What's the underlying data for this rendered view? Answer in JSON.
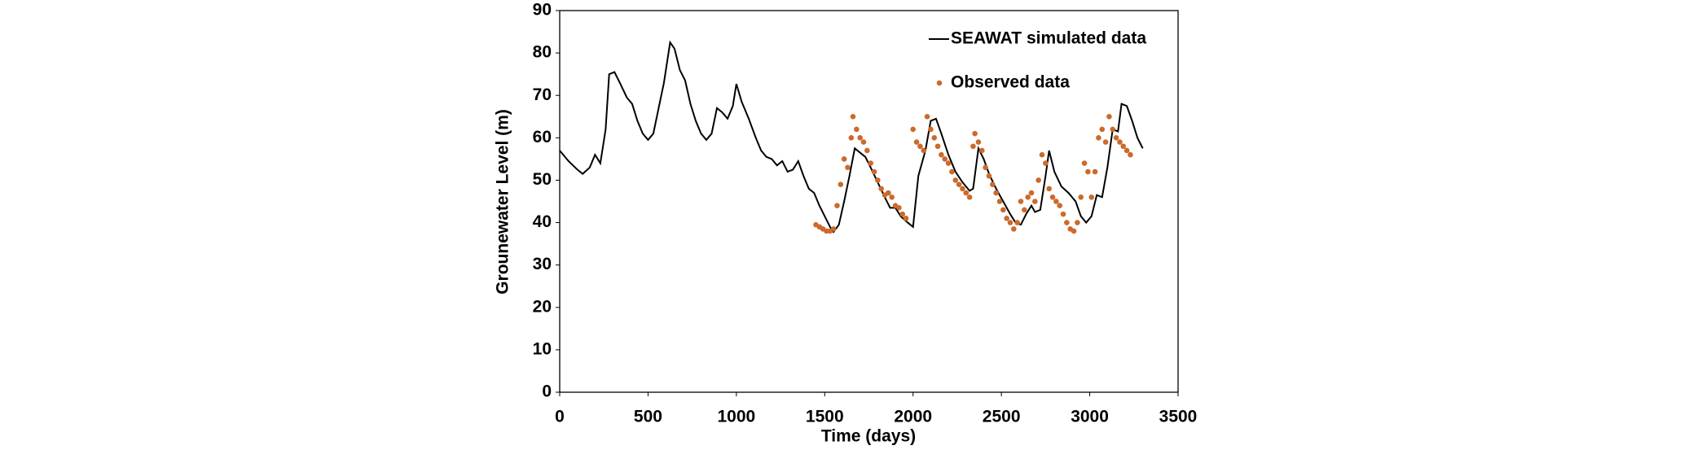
{
  "chart_data": {
    "type": "line",
    "x_label": "Time (days)",
    "y_label": "Grounewater Level (m)",
    "xlim": [
      0,
      3500
    ],
    "xticks": [
      0,
      500,
      1000,
      1500,
      2000,
      2500,
      3000,
      3500
    ],
    "ylim": [
      0,
      90
    ],
    "yticks": [
      0,
      10,
      20,
      30,
      40,
      50,
      60,
      70,
      80,
      90
    ],
    "grid": false,
    "legend": "upper right",
    "series": [
      {
        "name": "SEAWAT simulated data",
        "type": "line",
        "color": "#000000",
        "x": [
          0,
          50,
          100,
          130,
          170,
          200,
          230,
          260,
          280,
          310,
          340,
          380,
          410,
          440,
          470,
          500,
          530,
          560,
          590,
          625,
          650,
          680,
          710,
          740,
          770,
          800,
          830,
          860,
          890,
          920,
          950,
          980,
          1000,
          1030,
          1070,
          1110,
          1140,
          1170,
          1200,
          1230,
          1260,
          1290,
          1320,
          1350,
          1380,
          1410,
          1440,
          1470,
          1500,
          1530,
          1550,
          1580,
          1610,
          1640,
          1670,
          1700,
          1730,
          1760,
          1800,
          1840,
          1870,
          1900,
          1930,
          1970,
          2000,
          2030,
          2070,
          2100,
          2130,
          2160,
          2200,
          2240,
          2280,
          2320,
          2340,
          2370,
          2400,
          2430,
          2470,
          2510,
          2550,
          2580,
          2610,
          2640,
          2670,
          2690,
          2720,
          2750,
          2770,
          2800,
          2840,
          2880,
          2920,
          2950,
          2980,
          3010,
          3040,
          3070,
          3100,
          3130,
          3160,
          3180,
          3210,
          3240,
          3270,
          3300
        ],
        "values": [
          57,
          54.5,
          52.5,
          51.5,
          53,
          56,
          54,
          62,
          75,
          75.5,
          73,
          69.5,
          68,
          64,
          61,
          59.5,
          61,
          67,
          73,
          82.5,
          81,
          76,
          73.5,
          68,
          64,
          61,
          59.5,
          61,
          67,
          66,
          64.5,
          67.5,
          72.7,
          68.5,
          64.5,
          60,
          57,
          55.5,
          55,
          53.5,
          54.5,
          52,
          52.5,
          54.5,
          51,
          48,
          47,
          44,
          41.5,
          39,
          37.8,
          39.5,
          45,
          51,
          57.5,
          56.5,
          55.5,
          53,
          49.5,
          46,
          43.5,
          43.5,
          41.5,
          40,
          39,
          51,
          57,
          64,
          64.5,
          61,
          56,
          52,
          49.5,
          47.5,
          48,
          57.5,
          55,
          51.5,
          48,
          45,
          42,
          40,
          39.5,
          42,
          44,
          42.5,
          43,
          51,
          57,
          52,
          48.5,
          47,
          45,
          41.5,
          40,
          41.5,
          46.5,
          46,
          53,
          62,
          61.5,
          68,
          67.5,
          64,
          60,
          57.5
        ]
      },
      {
        "name": "Observed data",
        "type": "scatter",
        "color": "#cc6a2c",
        "x": [
          1450,
          1470,
          1490,
          1510,
          1530,
          1550,
          1570,
          1590,
          1610,
          1630,
          1650,
          1660,
          1680,
          1700,
          1720,
          1740,
          1760,
          1780,
          1800,
          1820,
          1840,
          1860,
          1880,
          1900,
          1920,
          1940,
          1960,
          2000,
          2020,
          2040,
          2060,
          2080,
          2100,
          2120,
          2140,
          2160,
          2180,
          2200,
          2220,
          2240,
          2260,
          2280,
          2300,
          2320,
          2340,
          2350,
          2370,
          2390,
          2410,
          2430,
          2450,
          2470,
          2490,
          2510,
          2530,
          2550,
          2570,
          2590,
          2610,
          2630,
          2650,
          2670,
          2690,
          2710,
          2730,
          2750,
          2770,
          2790,
          2810,
          2830,
          2850,
          2870,
          2890,
          2910,
          2930,
          2950,
          2970,
          2990,
          3010,
          3030,
          3050,
          3070,
          3090,
          3110,
          3130,
          3150,
          3170,
          3190,
          3210,
          3230
        ],
        "values": [
          39.5,
          39,
          38.5,
          38,
          38,
          38.5,
          44,
          49,
          55,
          53,
          60,
          65,
          62,
          60,
          59,
          57,
          54,
          52,
          50,
          48,
          46.5,
          47,
          46,
          44,
          43.5,
          42,
          41,
          62,
          59,
          58,
          57,
          65,
          62,
          60,
          58,
          56,
          55,
          54,
          52,
          50,
          49,
          48,
          47,
          46,
          58,
          61,
          59,
          57,
          53,
          51,
          49,
          47,
          45,
          43,
          41,
          40,
          38.5,
          40,
          45,
          43,
          46,
          47,
          45,
          50,
          56,
          54,
          48,
          46,
          45,
          44,
          42,
          40,
          38.5,
          38,
          40,
          46,
          54,
          52,
          46,
          52,
          60,
          62,
          59,
          65,
          62,
          60,
          59,
          58,
          57,
          56
        ]
      }
    ]
  }
}
